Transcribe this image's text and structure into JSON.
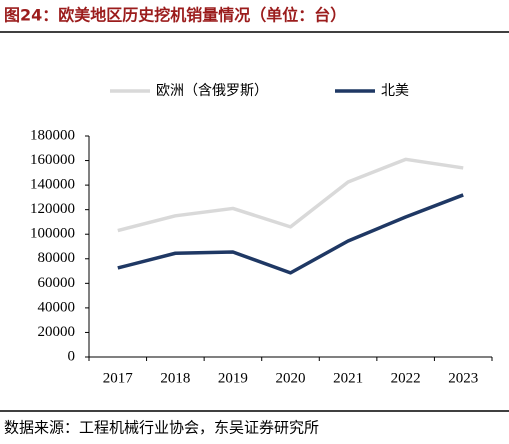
{
  "chart_data": {
    "type": "line",
    "title": "图24：欧美地区历史挖机销量情况（单位：台）",
    "source": "数据来源：工程机械行业协会，东吴证券研究所",
    "categories": [
      "2017",
      "2018",
      "2019",
      "2020",
      "2021",
      "2022",
      "2023"
    ],
    "series": [
      {
        "name": "欧洲（含俄罗斯）",
        "color": "#d9d9d9",
        "values": [
          103000,
          115000,
          121000,
          106000,
          142500,
          161000,
          154000
        ]
      },
      {
        "name": "北美",
        "color": "#1f3864",
        "values": [
          72500,
          84500,
          85500,
          68500,
          94500,
          114000,
          132000
        ]
      }
    ],
    "ylim": [
      0,
      180000
    ],
    "yticks": [
      0,
      20000,
      40000,
      60000,
      80000,
      100000,
      120000,
      140000,
      160000,
      180000
    ],
    "legend": "top"
  }
}
